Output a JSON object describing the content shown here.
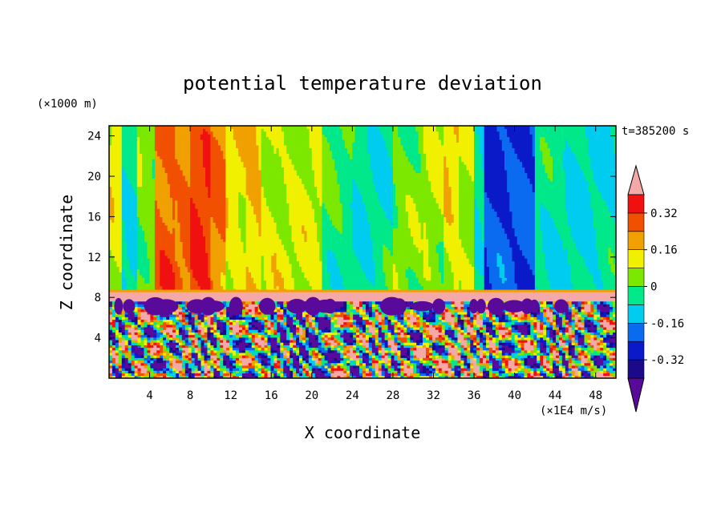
{
  "chart_data": {
    "type": "heatmap",
    "title": "potential temperature deviation",
    "xlabel": "X coordinate",
    "ylabel": "Z coordinate",
    "x_unit": "(×1E4 m/s)",
    "y_unit": "(×1000 m)",
    "time_label": "t=385200 s",
    "xlim": [
      0,
      50
    ],
    "ylim": [
      0,
      25
    ],
    "x_ticks": [
      4,
      8,
      12,
      16,
      20,
      24,
      28,
      32,
      36,
      40,
      44,
      48
    ],
    "y_ticks": [
      4,
      8,
      12,
      16,
      20,
      24
    ],
    "colorbar": {
      "levels": [
        -0.4,
        -0.32,
        -0.24,
        -0.16,
        -0.08,
        0,
        0.08,
        0.16,
        0.24,
        0.32,
        0.4
      ],
      "labels": [
        "-0.32",
        "-0.16",
        "0",
        "0.16",
        "0.32"
      ],
      "label_values": [
        -0.32,
        -0.16,
        0,
        0.16,
        0.32
      ],
      "colors": [
        "#5a0a9a",
        "#1a0a8a",
        "#0a1ac8",
        "#0a6af0",
        "#00ccf0",
        "#00e88a",
        "#7ce800",
        "#f0f000",
        "#f0a000",
        "#f05000",
        "#f01010",
        "#f4a8a8"
      ],
      "extend": "both"
    },
    "regions": {
      "upper_columns": [
        {
          "x": [
            0,
            1.2
          ],
          "v": 0.1
        },
        {
          "x": [
            1.2,
            2.8
          ],
          "v": -0.08
        },
        {
          "x": [
            2.8,
            4.5
          ],
          "v": 0.05
        },
        {
          "x": [
            4.5,
            6.5
          ],
          "v": 0.28
        },
        {
          "x": [
            6.5,
            8
          ],
          "v": 0.24
        },
        {
          "x": [
            8,
            10
          ],
          "v": 0.3
        },
        {
          "x": [
            10,
            11.5
          ],
          "v": 0.24
        },
        {
          "x": [
            11.5,
            13.5
          ],
          "v": 0.12
        },
        {
          "x": [
            13.5,
            15
          ],
          "v": 0.18
        },
        {
          "x": [
            15,
            16.5
          ],
          "v": 0.1
        },
        {
          "x": [
            16.5,
            21
          ],
          "v": 0.08
        },
        {
          "x": [
            21,
            24
          ],
          "v": -0.02
        },
        {
          "x": [
            24,
            28
          ],
          "v": -0.06
        },
        {
          "x": [
            28,
            31
          ],
          "v": 0.02
        },
        {
          "x": [
            31,
            33
          ],
          "v": 0.06
        },
        {
          "x": [
            33,
            34.5
          ],
          "v": 0.14
        },
        {
          "x": [
            34.5,
            36
          ],
          "v": 0.08
        },
        {
          "x": [
            36,
            37
          ],
          "v": -0.06
        },
        {
          "x": [
            37,
            42
          ],
          "v": -0.24
        },
        {
          "x": [
            42,
            45
          ],
          "v": -0.06
        },
        {
          "x": [
            45,
            50
          ],
          "v": -0.08
        }
      ],
      "inversion_layer_z": [
        7.6,
        8.6
      ],
      "inversion_layer_v": 0.42
    }
  }
}
